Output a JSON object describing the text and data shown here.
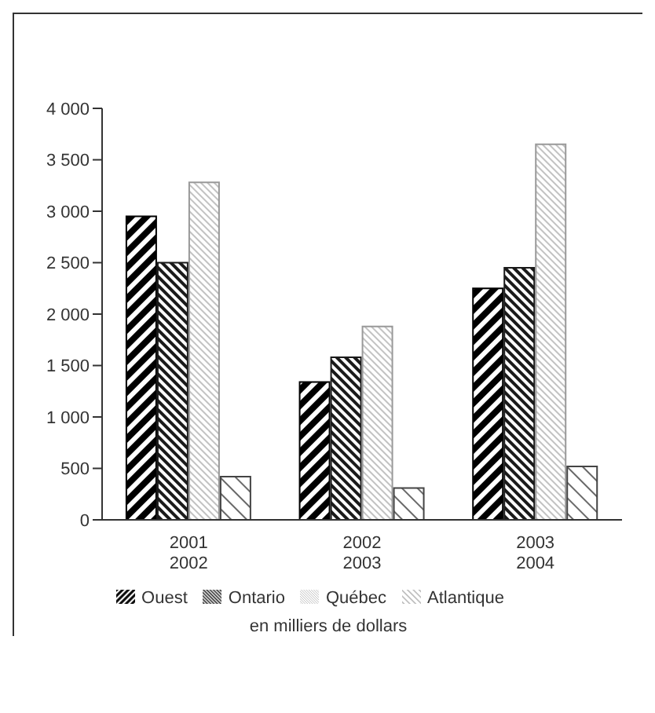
{
  "chart_data": {
    "type": "bar",
    "categories": [
      "2001\n2002",
      "2002\n2003",
      "2003\n2004"
    ],
    "series": [
      {
        "name": "Ouest",
        "color": "#000000",
        "values": [
          2950,
          1340,
          2250
        ]
      },
      {
        "name": "Ontario",
        "color": "#1a1a1a",
        "values": [
          2500,
          1580,
          2450
        ]
      },
      {
        "name": "Québec",
        "color": "#999999",
        "values": [
          3280,
          1880,
          3650
        ]
      },
      {
        "name": "Atlantique",
        "color": "#444444",
        "values": [
          420,
          310,
          520
        ]
      }
    ],
    "ylim": [
      0,
      4000
    ],
    "yticks": [
      0,
      500,
      {
        "value": 1000,
        "label": "1 000"
      },
      {
        "value": 1500,
        "label": "1 500"
      },
      {
        "value": 2000,
        "label": "2 000"
      },
      {
        "value": 2500,
        "label": "2 500"
      },
      {
        "value": 3000,
        "label": "3 000"
      },
      {
        "value": 3500,
        "label": "3 500"
      },
      {
        "value": 4000,
        "label": "4 000"
      }
    ],
    "grid": false,
    "legend": "bottom",
    "annotations": [
      "en milliers de dollars"
    ]
  }
}
